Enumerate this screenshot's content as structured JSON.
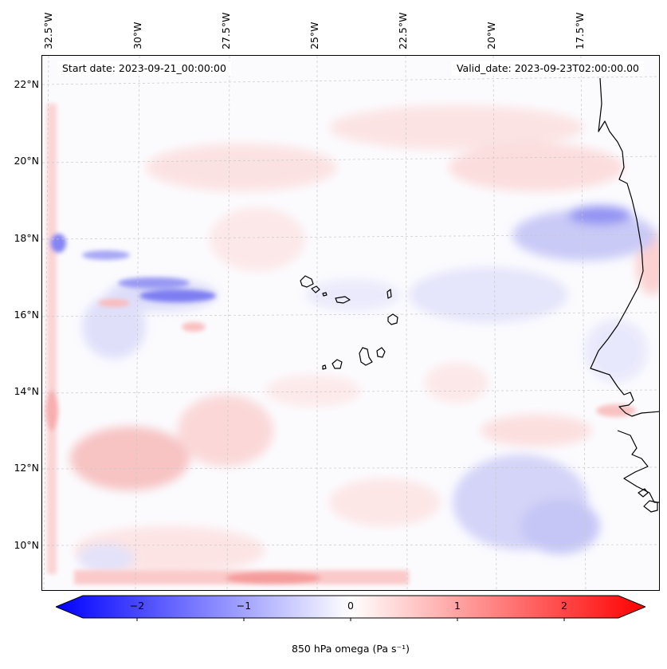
{
  "map": {
    "start_date_text": "Start date: 2023-09-21_00:00:00",
    "valid_date_text": "Valid_date: 2023-09-23T02:00:00.00",
    "lat_labels": [
      "22°N",
      "20°N",
      "18°N",
      "16°N",
      "14°N",
      "12°N",
      "10°N"
    ],
    "lon_labels": [
      "32.5°W",
      "30°W",
      "27.5°W",
      "25°W",
      "22.5°W",
      "20°W",
      "17.5°W"
    ],
    "gridlines": "on, dashed light gray",
    "coastlines": "black",
    "field": "850 hPa omega"
  },
  "colorbar": {
    "label": "850 hPa omega (Pa s⁻¹)",
    "tick_labels": [
      "−2",
      "−1",
      "0",
      "1",
      "2"
    ],
    "range": [
      -2.7,
      2.7
    ],
    "colormap": "bwr",
    "extend": "both",
    "colors": {
      "negative": "#0000ff",
      "zero": "#ffffff",
      "positive": "#ff0000"
    }
  }
}
